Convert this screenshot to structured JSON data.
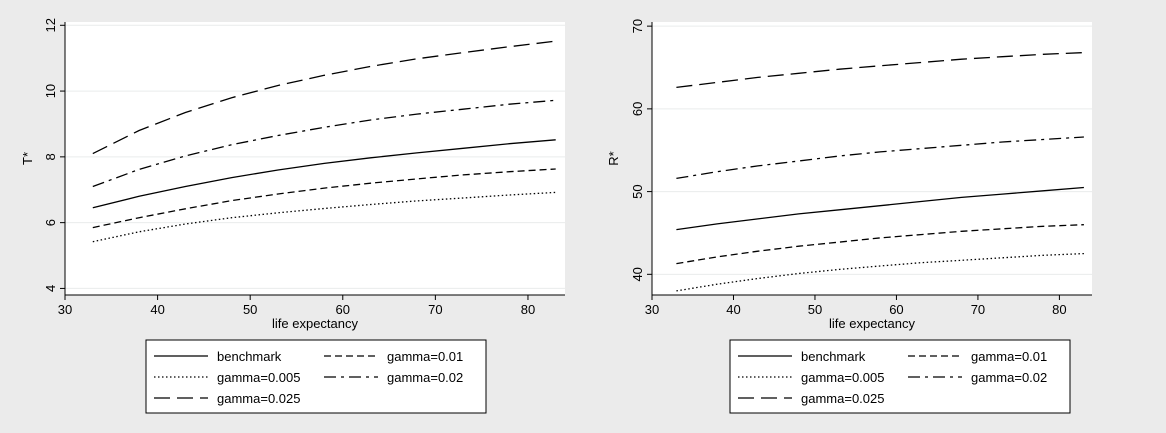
{
  "figure": {
    "background": "#ebebeb",
    "plot_background": "#ffffff",
    "line_color": "#000000"
  },
  "chart_data": [
    {
      "type": "line",
      "title": "",
      "xlabel": "life expectancy",
      "ylabel": "T*",
      "xlim": [
        30,
        84
      ],
      "ylim": [
        3.8,
        12.1
      ],
      "xticks": [
        30,
        40,
        50,
        60,
        70,
        80
      ],
      "yticks": [
        4,
        6,
        8,
        10,
        12
      ],
      "grid": "horizontal",
      "legend": "bottom",
      "x": [
        33,
        38,
        43,
        48,
        53,
        58,
        63,
        68,
        73,
        78,
        83
      ],
      "series": [
        {
          "name": "benchmark",
          "style": "solid",
          "values": [
            6.45,
            6.8,
            7.1,
            7.37,
            7.6,
            7.8,
            7.97,
            8.12,
            8.26,
            8.4,
            8.52
          ]
        },
        {
          "name": "gamma=0.01",
          "style": "dash",
          "values": [
            5.85,
            6.15,
            6.42,
            6.67,
            6.87,
            7.05,
            7.2,
            7.33,
            7.45,
            7.55,
            7.63
          ]
        },
        {
          "name": "gamma=0.005",
          "style": "dot",
          "values": [
            5.42,
            5.72,
            5.96,
            6.15,
            6.3,
            6.43,
            6.55,
            6.66,
            6.75,
            6.84,
            6.92
          ]
        },
        {
          "name": "gamma=0.02",
          "style": "dashdot",
          "values": [
            7.1,
            7.62,
            8.03,
            8.37,
            8.65,
            8.9,
            9.12,
            9.3,
            9.45,
            9.6,
            9.72
          ]
        },
        {
          "name": "gamma=0.025",
          "style": "longdash",
          "values": [
            8.1,
            8.8,
            9.35,
            9.8,
            10.17,
            10.48,
            10.75,
            10.98,
            11.17,
            11.35,
            11.52
          ]
        }
      ]
    },
    {
      "type": "line",
      "title": "",
      "xlabel": "life expectancy",
      "ylabel": "R*",
      "xlim": [
        30,
        84
      ],
      "ylim": [
        37.5,
        70.5
      ],
      "xticks": [
        30,
        40,
        50,
        60,
        70,
        80
      ],
      "yticks": [
        40,
        50,
        60,
        70
      ],
      "grid": "horizontal",
      "legend": "bottom",
      "x": [
        33,
        38,
        43,
        48,
        53,
        58,
        63,
        68,
        73,
        78,
        83
      ],
      "series": [
        {
          "name": "benchmark",
          "style": "solid",
          "values": [
            45.4,
            46.1,
            46.7,
            47.3,
            47.8,
            48.3,
            48.8,
            49.3,
            49.7,
            50.1,
            50.5
          ]
        },
        {
          "name": "gamma=0.01",
          "style": "dash",
          "values": [
            41.3,
            42.1,
            42.8,
            43.4,
            43.9,
            44.4,
            44.8,
            45.2,
            45.5,
            45.8,
            46.0
          ]
        },
        {
          "name": "gamma=0.005",
          "style": "dot",
          "values": [
            38.0,
            38.8,
            39.5,
            40.1,
            40.6,
            41.0,
            41.4,
            41.7,
            42.0,
            42.3,
            42.5
          ]
        },
        {
          "name": "gamma=0.02",
          "style": "dashdot",
          "values": [
            51.6,
            52.4,
            53.1,
            53.7,
            54.3,
            54.8,
            55.2,
            55.6,
            56.0,
            56.3,
            56.6
          ]
        },
        {
          "name": "gamma=0.025",
          "style": "longdash",
          "values": [
            62.6,
            63.2,
            63.8,
            64.3,
            64.8,
            65.2,
            65.6,
            66.0,
            66.3,
            66.6,
            66.8
          ]
        }
      ]
    }
  ]
}
